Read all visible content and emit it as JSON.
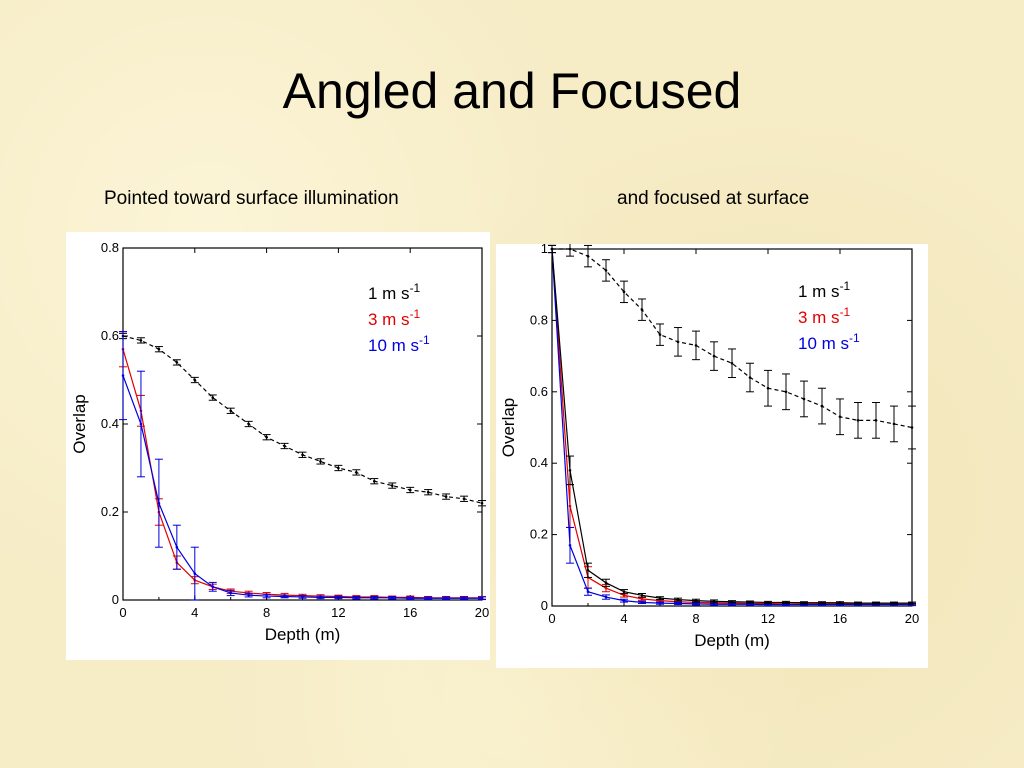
{
  "slide": {
    "title": "Angled and Focused",
    "left_caption": "Pointed toward surface illumination",
    "right_caption": "and focused at surface"
  },
  "colors": {
    "background": "#f6ecc6",
    "series_1": "#000000",
    "series_3": "#e00000",
    "series_10": "#0000e0"
  },
  "chart_data": [
    {
      "type": "line",
      "xlabel": "Depth (m)",
      "ylabel": "Overlap",
      "xlim": [
        0,
        20
      ],
      "ylim": [
        0,
        0.8
      ],
      "xticks": [
        "0",
        "4",
        "8",
        "12",
        "16",
        "20"
      ],
      "yticks": [
        "0",
        "0.2",
        "0.4",
        "0.6",
        "0.8"
      ],
      "legend": "top-right",
      "x": [
        0,
        1,
        2,
        3,
        4,
        5,
        6,
        7,
        8,
        9,
        10,
        11,
        12,
        13,
        14,
        15,
        16,
        17,
        18,
        19,
        20
      ],
      "series": [
        {
          "name": "1 m s",
          "sup": "-1",
          "color": "#000000",
          "dashed": true,
          "values": [
            0.6,
            0.59,
            0.57,
            0.54,
            0.5,
            0.46,
            0.43,
            0.4,
            0.37,
            0.35,
            0.33,
            0.315,
            0.3,
            0.29,
            0.27,
            0.26,
            0.25,
            0.245,
            0.235,
            0.23,
            0.22
          ],
          "err": [
            0.006,
            0.006,
            0.006,
            0.006,
            0.006,
            0.006,
            0.006,
            0.006,
            0.006,
            0.006,
            0.006,
            0.006,
            0.006,
            0.006,
            0.006,
            0.006,
            0.006,
            0.006,
            0.006,
            0.006,
            0.006
          ]
        },
        {
          "name": "3 m s",
          "sup": "-1",
          "color": "#e00000",
          "dashed": false,
          "values": [
            0.57,
            0.43,
            0.2,
            0.085,
            0.045,
            0.03,
            0.02,
            0.016,
            0.013,
            0.011,
            0.01,
            0.009,
            0.008,
            0.007,
            0.007,
            0.006,
            0.006,
            0.005,
            0.005,
            0.005,
            0.005
          ],
          "err": [
            0.04,
            0.035,
            0.03,
            0.015,
            0.008,
            0.006,
            0.005,
            0.004,
            0.004,
            0.004,
            0.003,
            0.003,
            0.003,
            0.003,
            0.003,
            0.003,
            0.003,
            0.003,
            0.003,
            0.003,
            0.003
          ]
        },
        {
          "name": "10 m s",
          "sup": "-1",
          "color": "#0000e0",
          "dashed": false,
          "values": [
            0.51,
            0.4,
            0.22,
            0.12,
            0.06,
            0.03,
            0.016,
            0.011,
            0.009,
            0.008,
            0.007,
            0.006,
            0.006,
            0.005,
            0.005,
            0.005,
            0.004,
            0.004,
            0.004,
            0.004,
            0.004
          ],
          "err": [
            0.1,
            0.12,
            0.1,
            0.05,
            0.06,
            0.01,
            0.006,
            0.004,
            0.004,
            0.003,
            0.003,
            0.003,
            0.003,
            0.003,
            0.003,
            0.003,
            0.003,
            0.003,
            0.003,
            0.003,
            0.003
          ]
        }
      ]
    },
    {
      "type": "line",
      "xlabel": "Depth (m)",
      "ylabel": "Overlap",
      "xlim": [
        0,
        20
      ],
      "ylim": [
        0,
        1.0
      ],
      "xticks": [
        "0",
        "4",
        "8",
        "12",
        "16",
        "20"
      ],
      "yticks": [
        "0",
        "0.2",
        "0.4",
        "0.6",
        "0.8",
        "1"
      ],
      "legend": "top-right",
      "x": [
        0,
        1,
        2,
        3,
        4,
        5,
        6,
        7,
        8,
        9,
        10,
        11,
        12,
        13,
        14,
        15,
        16,
        17,
        18,
        19,
        20
      ],
      "series": [
        {
          "name": "1 m s",
          "sup": "-1",
          "color": "#000000",
          "dashed": true,
          "values": [
            1.0,
            1.0,
            0.98,
            0.94,
            0.88,
            0.83,
            0.76,
            0.74,
            0.73,
            0.7,
            0.68,
            0.64,
            0.61,
            0.6,
            0.58,
            0.56,
            0.53,
            0.52,
            0.52,
            0.51,
            0.5
          ],
          "err": [
            0.01,
            0.02,
            0.03,
            0.03,
            0.03,
            0.03,
            0.03,
            0.04,
            0.04,
            0.04,
            0.04,
            0.04,
            0.05,
            0.05,
            0.05,
            0.05,
            0.05,
            0.05,
            0.05,
            0.05,
            0.06
          ]
        },
        {
          "name": "3 m s",
          "sup": "-1",
          "color": "#e00000",
          "dashed": false,
          "values": [
            1.0,
            0.28,
            0.08,
            0.05,
            0.03,
            0.02,
            0.015,
            0.012,
            0.01,
            0.009,
            0.008,
            0.007,
            0.007,
            0.006,
            0.006,
            0.006,
            0.006,
            0.005,
            0.005,
            0.005,
            0.005
          ],
          "err": [
            0.01,
            0.06,
            0.03,
            0.01,
            0.005,
            0.004,
            0.003,
            0.003,
            0.003,
            0.003,
            0.003,
            0.003,
            0.003,
            0.003,
            0.003,
            0.003,
            0.003,
            0.003,
            0.003,
            0.003,
            0.003
          ]
        },
        {
          "name": "10 m s",
          "sup": "-1",
          "color": "#0000e0",
          "dashed": false,
          "values": [
            1.0,
            0.17,
            0.04,
            0.025,
            0.015,
            0.01,
            0.008,
            0.007,
            0.006,
            0.005,
            0.005,
            0.005,
            0.004,
            0.004,
            0.004,
            0.004,
            0.004,
            0.004,
            0.004,
            0.004,
            0.004
          ],
          "err": [
            0.01,
            0.05,
            0.01,
            0.006,
            0.004,
            0.003,
            0.003,
            0.003,
            0.003,
            0.003,
            0.003,
            0.003,
            0.003,
            0.003,
            0.003,
            0.003,
            0.003,
            0.003,
            0.003,
            0.003,
            0.003
          ]
        },
        {
          "name": "1 m s (near surface)",
          "color": "#000000",
          "dashed": false,
          "hide_in_legend": true,
          "values": [
            1.0,
            0.38,
            0.1,
            0.065,
            0.04,
            0.03,
            0.022,
            0.018,
            0.015,
            0.013,
            0.012,
            0.011,
            0.01,
            0.01,
            0.009,
            0.009,
            0.009,
            0.008,
            0.008,
            0.008,
            0.008
          ],
          "err": [
            0.01,
            0.04,
            0.02,
            0.01,
            0.006,
            0.005,
            0.004,
            0.004,
            0.004,
            0.004,
            0.003,
            0.003,
            0.003,
            0.003,
            0.003,
            0.003,
            0.003,
            0.003,
            0.003,
            0.003,
            0.003
          ]
        }
      ]
    }
  ]
}
